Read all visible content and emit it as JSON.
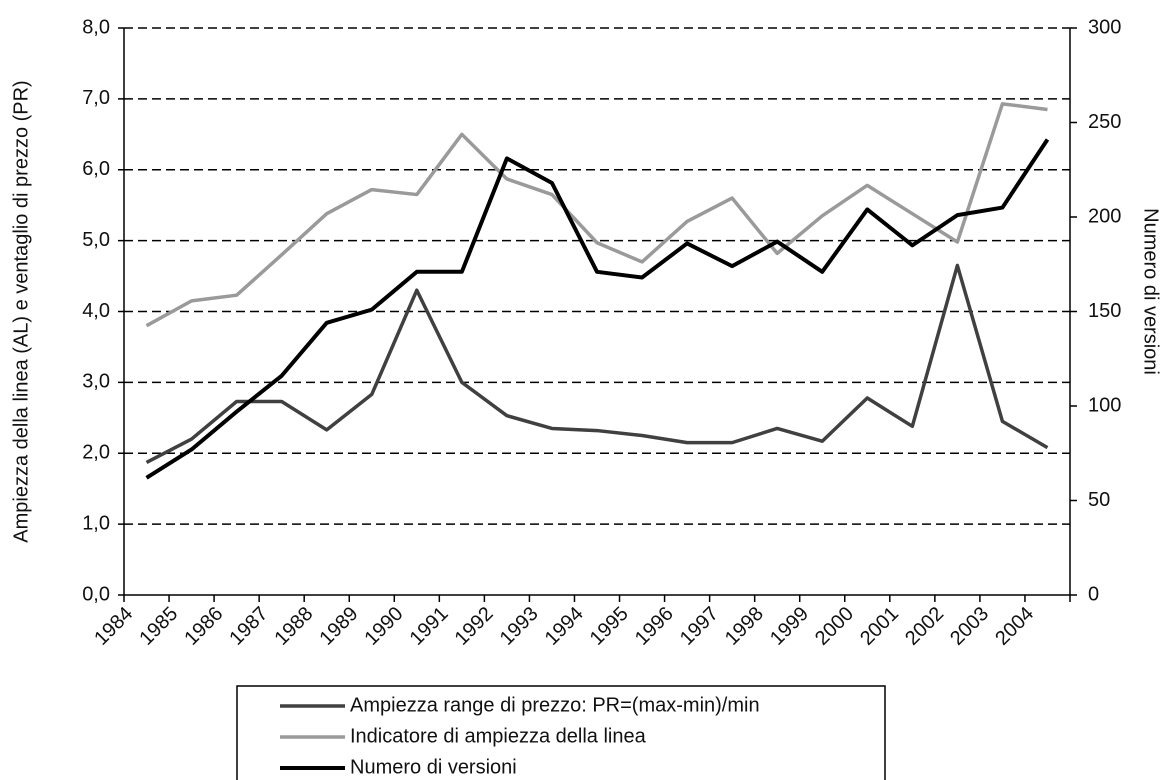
{
  "chart_data": {
    "type": "line",
    "categories": [
      "1984",
      "1985",
      "1986",
      "1987",
      "1988",
      "1989",
      "1990",
      "1991",
      "1992",
      "1993",
      "1994",
      "1995",
      "1996",
      "1997",
      "1998",
      "1999",
      "2000",
      "2001",
      "2002",
      "2003",
      "2004"
    ],
    "ylabel": "Ampiezza della linea (AL) e ventaglio di prezzo (PR)",
    "y2label": "Numero di versioni",
    "ylim": [
      0,
      8
    ],
    "yticks": [
      {
        "value": 0,
        "label": "0,0"
      },
      {
        "value": 1,
        "label": "1,0"
      },
      {
        "value": 2,
        "label": "2,0"
      },
      {
        "value": 3,
        "label": "3,0"
      },
      {
        "value": 4,
        "label": "4,0"
      },
      {
        "value": 5,
        "label": "5,0"
      },
      {
        "value": 6,
        "label": "6,0"
      },
      {
        "value": 7,
        "label": "7,0"
      },
      {
        "value": 8,
        "label": "8,0"
      }
    ],
    "y2lim": [
      0,
      300
    ],
    "y2ticks": [
      0,
      50,
      100,
      150,
      200,
      250,
      300
    ],
    "grid": true,
    "legend": "bottom",
    "series": [
      {
        "name": "Ampiezza range di prezzo: PR=(max-min)/min",
        "color": "#404040",
        "values": [
          1.87,
          2.2,
          2.73,
          2.73,
          2.33,
          2.83,
          4.3,
          3.0,
          2.53,
          2.35,
          2.32,
          2.25,
          2.15,
          2.15,
          2.35,
          2.17,
          2.78,
          2.38,
          4.65,
          2.45,
          2.08
        ]
      },
      {
        "name": "Indicatore di ampiezza della linea",
        "color": "#9a9a9a",
        "values": [
          3.8,
          4.15,
          4.23,
          4.8,
          5.38,
          5.72,
          5.65,
          6.5,
          5.87,
          5.65,
          4.97,
          4.7,
          5.27,
          5.6,
          4.82,
          5.35,
          5.78,
          5.38,
          4.98,
          6.93,
          6.85
        ]
      },
      {
        "name": "Numero di versioni",
        "color": "#000000",
        "axis": "y2",
        "values": [
          62,
          77,
          97,
          116,
          144,
          151,
          171,
          171,
          231,
          218,
          171,
          168,
          186,
          174,
          187,
          171,
          204,
          185,
          201,
          205,
          241
        ]
      }
    ]
  }
}
